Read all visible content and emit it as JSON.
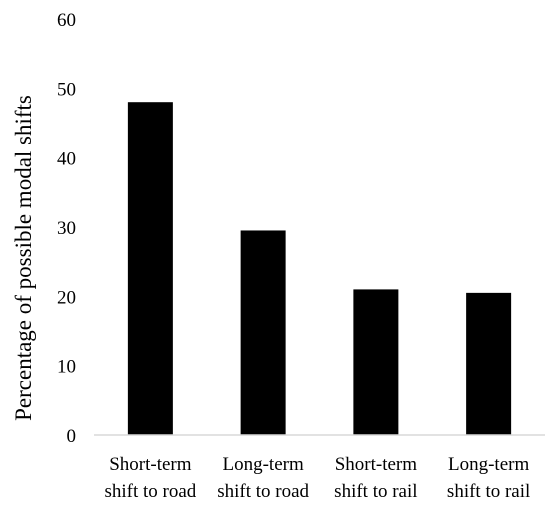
{
  "chart_data": {
    "type": "bar",
    "title": "",
    "xlabel": "",
    "ylabel": "Percentage of possible modal shifts",
    "ylim": [
      0,
      60
    ],
    "yticks": [
      0,
      10,
      20,
      30,
      40,
      50,
      60
    ],
    "grid": false,
    "legend": "none",
    "categories": [
      [
        "Short-term",
        "shift to road"
      ],
      [
        "Long-term",
        "shift to road"
      ],
      [
        "Short-term",
        "shift to rail"
      ],
      [
        "Long-term",
        "shift to rail"
      ]
    ],
    "values": [
      48,
      29.5,
      21,
      20.5
    ],
    "colors": {
      "bar": "#000000",
      "axis": "#d9d9d9",
      "text": "#000000"
    }
  }
}
